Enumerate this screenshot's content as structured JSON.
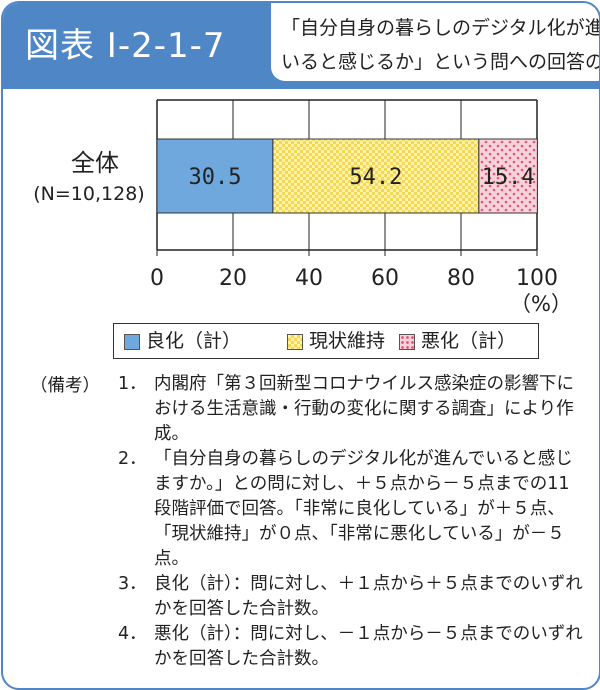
{
  "figure": {
    "id": "図表 I-2-1-7",
    "title_line1": "「自分自身の暮らしのデジタル化が進んで",
    "title_line2": "いると感じるか」という問への回答の割合"
  },
  "chart_data": {
    "type": "bar",
    "orientation": "horizontal",
    "stacked": true,
    "categories": [
      "全体"
    ],
    "category_sublabels": [
      "(N=10,128)"
    ],
    "series": [
      {
        "name": "良化（計）",
        "values": [
          30.5
        ],
        "color": "#6fa8dc"
      },
      {
        "name": "現状維持",
        "values": [
          54.2
        ],
        "color": "#fff3a8"
      },
      {
        "name": "悪化（計）",
        "values": [
          15.4
        ],
        "color": "#f7c6cf"
      }
    ],
    "value_labels": [
      "30.5",
      "54.2",
      "15.4"
    ],
    "xlim": [
      0,
      100
    ],
    "xticks": [
      "0",
      "20",
      "40",
      "60",
      "80",
      "100"
    ],
    "xunit": "（%）",
    "grid": true,
    "legend_position": "bottom"
  },
  "notes": {
    "label": "（備考）",
    "items": [
      {
        "num": "1．",
        "text": "内閣府「第３回新型コロナウイルス感染症の影響下における生活意識・行動の変化に関する調査」により作成。"
      },
      {
        "num": "2．",
        "text": "「自分自身の暮らしのデジタル化が進んでいると感じますか。」との問に対し、＋５点から－５点までの11段階評価で回答。「非常に良化している」が＋５点、「現状維持」が０点、「非常に悪化している」が－５点。"
      },
      {
        "num": "3．",
        "text": "良化（計）：問に対し、＋１点から＋５点までのいずれかを回答した合計数。"
      },
      {
        "num": "4．",
        "text": "悪化（計）：問に対し、－１点から－５点までのいずれかを回答した合計数。"
      }
    ]
  }
}
